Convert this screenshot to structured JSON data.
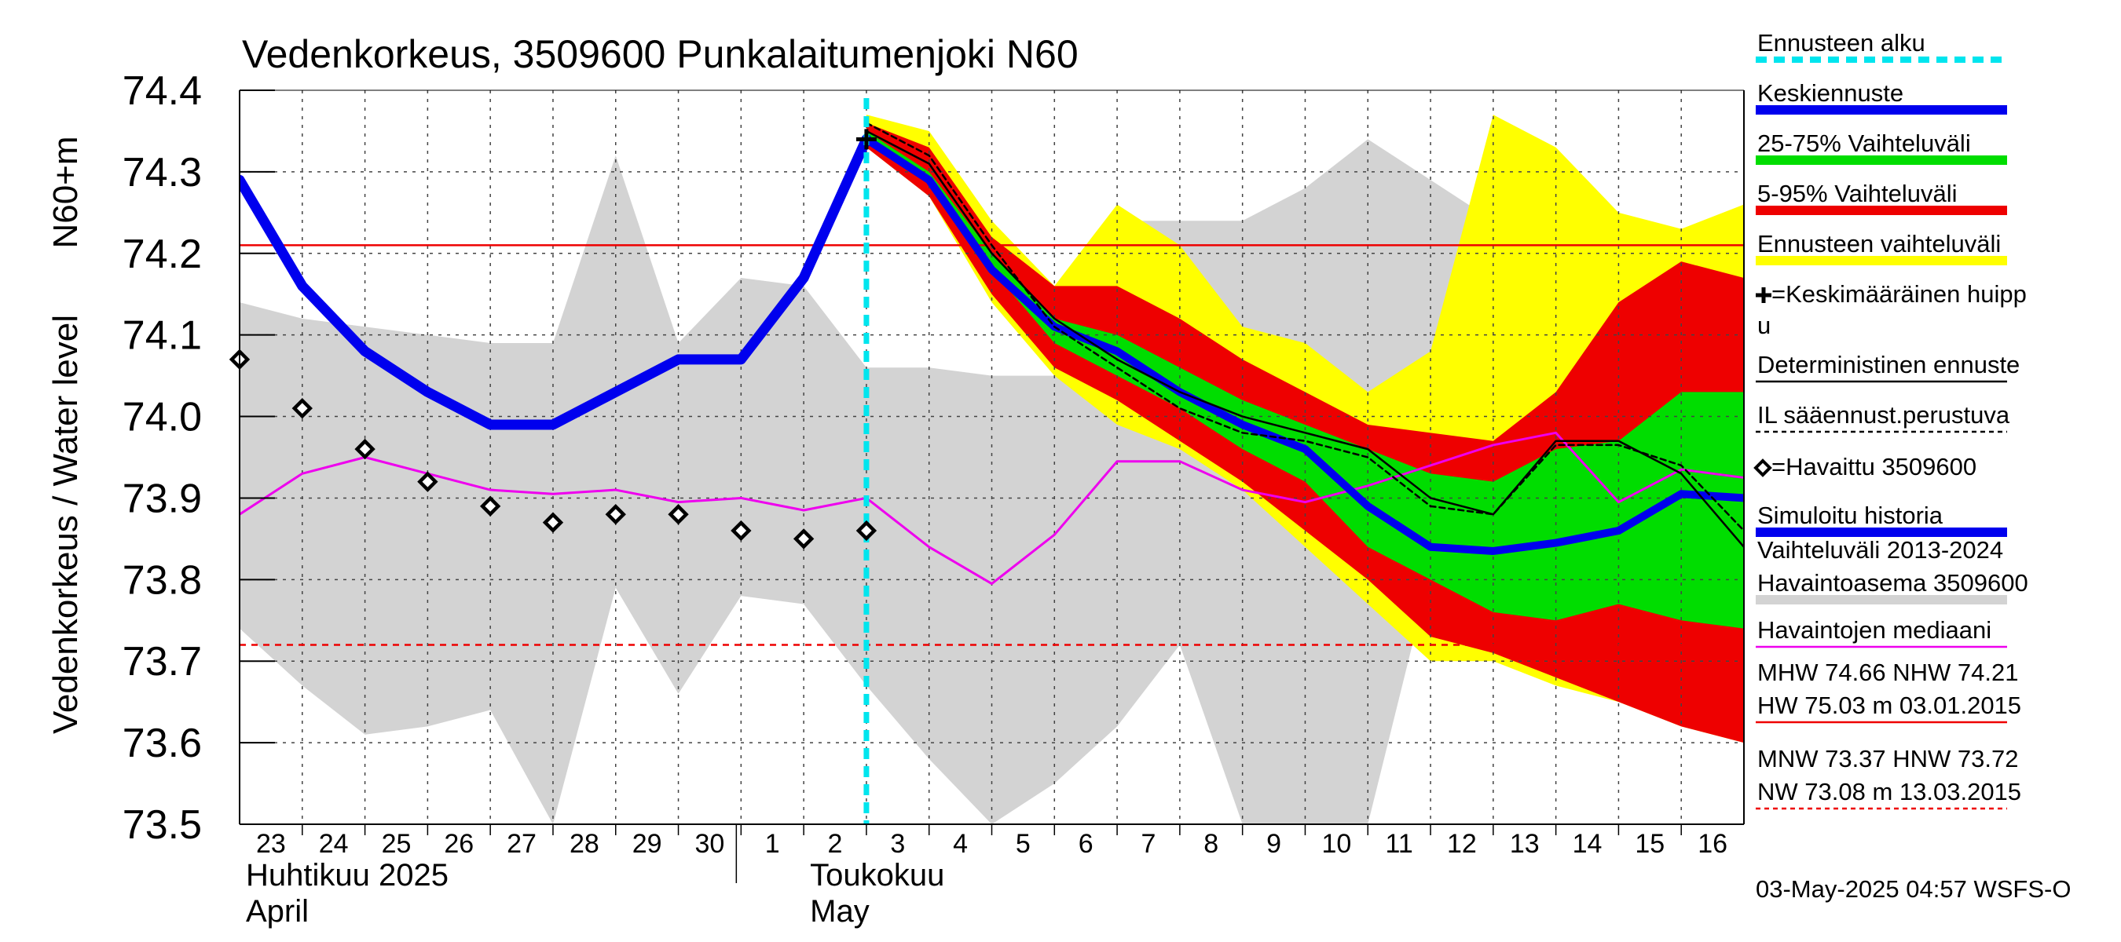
{
  "chart_data": {
    "type": "line",
    "title": "Vedenkorkeus, 3509600 Punkalaitumenjoki N60",
    "ylabel_outer": "Vedenkorkeus / Water level",
    "ylabel_inner": "N60+m",
    "ylim": [
      73.5,
      74.4
    ],
    "yticks": [
      "73.5",
      "73.6",
      "73.7",
      "73.8",
      "73.9",
      "74.0",
      "74.1",
      "74.2",
      "74.3",
      "74.4"
    ],
    "xlim": [
      0,
      24
    ],
    "days": [
      "23",
      "24",
      "25",
      "26",
      "27",
      "28",
      "29",
      "30",
      "1",
      "2",
      "3",
      "4",
      "5",
      "6",
      "7",
      "8",
      "9",
      "10",
      "11",
      "12",
      "13",
      "14",
      "15",
      "16"
    ],
    "months": [
      {
        "fi": "Huhtikuu  2025",
        "en": "April",
        "at": 0
      },
      {
        "fi": "Toukokuu",
        "en": "May",
        "at": 9
      }
    ],
    "grid": true,
    "forecast_start_x": 10,
    "reference_lines": {
      "NHW": 74.21,
      "HNW": 73.72
    },
    "bands": {
      "history_range": {
        "x": [
          0,
          1,
          2,
          3,
          4,
          5,
          6,
          7,
          8,
          9,
          10,
          11,
          12,
          13,
          14,
          15,
          16,
          17,
          18,
          19,
          20,
          21,
          22,
          23,
          24
        ],
        "upper": [
          74.14,
          74.12,
          74.11,
          74.1,
          74.09,
          74.09,
          74.32,
          74.09,
          74.17,
          74.16,
          74.06,
          74.06,
          74.05,
          74.05,
          74.24,
          74.24,
          74.24,
          74.28,
          74.34,
          74.29,
          74.24,
          74.25,
          74.19,
          74.17,
          74.16
        ],
        "lower": [
          73.74,
          73.67,
          73.61,
          73.62,
          73.64,
          73.5,
          73.79,
          73.66,
          73.78,
          73.77,
          73.67,
          73.58,
          73.5,
          73.55,
          73.62,
          73.72,
          73.5,
          73.5,
          73.5,
          73.81,
          73.83,
          73.81,
          73.79,
          73.77,
          73.76
        ]
      },
      "forecast_range": {
        "x": [
          10,
          11,
          12,
          13,
          14,
          15,
          16,
          17,
          18,
          19,
          20,
          21,
          22,
          23,
          24
        ],
        "upper": [
          74.37,
          74.35,
          74.24,
          74.16,
          74.26,
          74.21,
          74.11,
          74.09,
          74.03,
          74.08,
          74.37,
          74.33,
          74.25,
          74.23,
          74.26
        ],
        "lower": [
          74.33,
          74.27,
          74.14,
          74.05,
          73.99,
          73.96,
          73.91,
          73.84,
          73.77,
          73.7,
          73.7,
          73.67,
          73.65,
          73.62,
          73.6
        ]
      },
      "range_5_95": {
        "x": [
          10,
          11,
          12,
          13,
          14,
          15,
          16,
          17,
          18,
          19,
          20,
          21,
          22,
          23,
          24
        ],
        "upper": [
          74.36,
          74.33,
          74.22,
          74.16,
          74.16,
          74.12,
          74.07,
          74.03,
          73.99,
          73.98,
          73.97,
          74.03,
          74.14,
          74.19,
          74.17
        ],
        "lower": [
          74.33,
          74.27,
          74.15,
          74.06,
          74.02,
          73.97,
          73.92,
          73.86,
          73.8,
          73.73,
          73.71,
          73.68,
          73.65,
          73.62,
          73.6
        ]
      },
      "range_25_75": {
        "x": [
          10,
          11,
          12,
          13,
          14,
          15,
          16,
          17,
          18,
          19,
          20,
          21,
          22,
          23,
          24
        ],
        "upper": [
          74.35,
          74.3,
          74.2,
          74.12,
          74.1,
          74.06,
          74.02,
          73.99,
          73.96,
          73.93,
          73.92,
          73.96,
          73.97,
          74.03,
          74.03
        ],
        "lower": [
          74.34,
          74.29,
          74.18,
          74.09,
          74.05,
          74.01,
          73.96,
          73.92,
          73.84,
          73.8,
          73.76,
          73.75,
          73.77,
          73.75,
          73.74
        ]
      }
    },
    "series": [
      {
        "name": "Simuloitu historia",
        "x": [
          0,
          1,
          2,
          3,
          4,
          5,
          6,
          7,
          8,
          9,
          10
        ],
        "y": [
          74.29,
          74.16,
          74.08,
          74.03,
          73.99,
          73.99,
          74.03,
          74.07,
          74.07,
          74.17,
          74.34
        ]
      },
      {
        "name": "Keskiennuste",
        "x": [
          10,
          11,
          12,
          13,
          14,
          15,
          16,
          17,
          18,
          19,
          20,
          21,
          22,
          23,
          24
        ],
        "y": [
          74.34,
          74.29,
          74.18,
          74.11,
          74.08,
          74.03,
          73.99,
          73.96,
          73.89,
          73.84,
          73.835,
          73.845,
          73.86,
          73.905,
          73.9
        ]
      },
      {
        "name": "Deterministinen ennuste",
        "x": [
          10,
          11,
          12,
          13,
          14,
          15,
          16,
          17,
          18,
          19,
          20,
          21,
          22,
          23,
          24
        ],
        "y": [
          74.35,
          74.31,
          74.2,
          74.12,
          74.07,
          74.03,
          74.0,
          73.98,
          73.96,
          73.9,
          73.88,
          73.97,
          73.97,
          73.93,
          73.84
        ]
      },
      {
        "name": "IL sääennust.perustuva",
        "x": [
          10,
          11,
          12,
          13,
          14,
          15,
          16,
          17,
          18,
          19,
          20,
          21,
          22,
          23,
          24
        ],
        "y": [
          74.36,
          74.32,
          74.21,
          74.11,
          74.06,
          74.01,
          73.98,
          73.97,
          73.95,
          73.89,
          73.88,
          73.965,
          73.965,
          73.94,
          73.86
        ]
      },
      {
        "name": "Havaintojen mediaani",
        "x": [
          0,
          1,
          2,
          3,
          4,
          5,
          6,
          7,
          8,
          9,
          10,
          11,
          12,
          13,
          14,
          15,
          16,
          17,
          18,
          19,
          20,
          21,
          22,
          23,
          24
        ],
        "y": [
          73.88,
          73.93,
          73.95,
          73.93,
          73.91,
          73.905,
          73.91,
          73.895,
          73.9,
          73.885,
          73.9,
          73.84,
          73.795,
          73.855,
          73.945,
          73.945,
          73.91,
          73.895,
          73.915,
          73.94,
          73.965,
          73.98,
          73.895,
          73.935,
          73.925
        ]
      },
      {
        "name": "Havaittu 3509600",
        "x": [
          0,
          1,
          2,
          3,
          4,
          5,
          6,
          7,
          8,
          9,
          10
        ],
        "y": [
          74.07,
          74.01,
          73.96,
          73.92,
          73.89,
          73.87,
          73.88,
          73.88,
          73.86,
          73.85,
          73.86
        ]
      }
    ],
    "mean_peak": {
      "x": 10,
      "y": 74.34
    },
    "legend": [
      {
        "label": "Ennusteen alku",
        "color": "#00e5ee",
        "style": "dashed-thick"
      },
      {
        "label": "Keskiennuste",
        "color": "#0000ee",
        "style": "thick"
      },
      {
        "label": "25-75% Vaihteluväli",
        "color": "#00dd00",
        "style": "thick"
      },
      {
        "label": "5-95% Vaihteluväli",
        "color": "#ee0000",
        "style": "thick"
      },
      {
        "label": "Ennusteen vaihteluväli",
        "color": "#ffff00",
        "style": "thick"
      },
      {
        "label": "=Keskimääräinen huippu",
        "color": "#000000",
        "style": "plus"
      },
      {
        "label": "Deterministinen ennuste",
        "color": "#000000",
        "style": "thin"
      },
      {
        "label": "IL sääennust.perustuva",
        "color": "#000000",
        "style": "dashed"
      },
      {
        "label": "=Havaittu 3509600",
        "color": "#000000",
        "style": "diamond"
      },
      {
        "label": "Simuloitu historia",
        "color": "#0000ee",
        "style": "thick"
      },
      {
        "label": "Vaihteluväli 2013-2024\n Havaintoasema 3509600",
        "color": "#d3d3d3",
        "style": "thick"
      },
      {
        "label": "Havaintojen mediaani",
        "color": "#ee00ee",
        "style": "thin"
      },
      {
        "label": "MHW  74.66 NHW  74.21\nHW  75.03 m 03.01.2015",
        "color": "#ee0000",
        "style": "thin"
      },
      {
        "label": "MNW  73.37 HNW  73.72\nNW  73.08 m 13.03.2015",
        "color": "#ee0000",
        "style": "dashed"
      }
    ],
    "timestamp": "03-May-2025 04:57 WSFS-O"
  },
  "colors": {
    "history_range": "#d3d3d3",
    "forecast_range": "#ffff00",
    "range_5_95": "#ee0000",
    "range_25_75": "#00dd00",
    "mean_forecast": "#0000ee",
    "median": "#ee00ee",
    "forecast_start": "#00e5ee",
    "reference": "#ee0000"
  }
}
